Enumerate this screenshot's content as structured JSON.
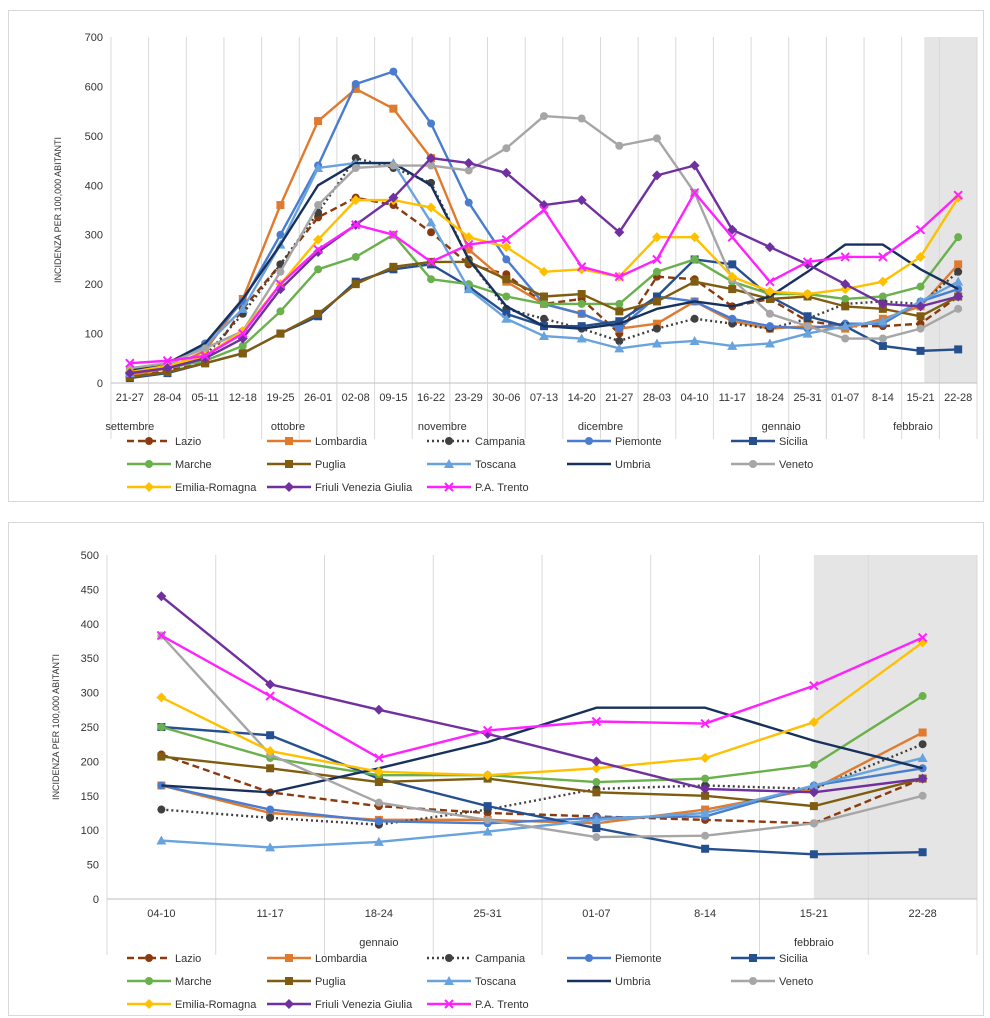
{
  "chart_data": [
    {
      "type": "line",
      "ylabel": "INCIDENZA PER 100,000 ABITANTI",
      "ylim": [
        0,
        700
      ],
      "yticks": [
        0,
        100,
        200,
        300,
        400,
        500,
        600,
        700
      ],
      "grid": "vertical",
      "legend_position": "bottom",
      "categories": [
        "21-27",
        "28-04",
        "05-11",
        "12-18",
        "19-25",
        "26-01",
        "02-08",
        "09-15",
        "16-22",
        "23-29",
        "30-06",
        "07-13",
        "14-20",
        "21-27",
        "28-03",
        "04-10",
        "11-17",
        "18-24",
        "25-31",
        "01-07",
        "8-14",
        "15-21",
        "22-28"
      ],
      "months": [
        {
          "label": "settembre",
          "index": 0
        },
        {
          "label": "ottobre",
          "index": 4.2
        },
        {
          "label": "novembre",
          "index": 8.3
        },
        {
          "label": "dicembre",
          "index": 12.5
        },
        {
          "label": "gennaio",
          "index": 17.3
        },
        {
          "label": "febbraio",
          "index": 20.8
        }
      ],
      "month_dividers": [
        2,
        6,
        10,
        14,
        19
      ],
      "shaded_from_index": 21.6,
      "series": [
        {
          "name": "Lazio",
          "color": "#8b3a0e",
          "dash": "7,4",
          "marker": "circle",
          "values": [
            15,
            25,
            40,
            150,
            240,
            335,
            375,
            360,
            305,
            240,
            220,
            160,
            170,
            100,
            215,
            210,
            155,
            170,
            125,
            115,
            115,
            120,
            175
          ]
        },
        {
          "name": "Lombardia",
          "color": "#e07a2e",
          "dash": "",
          "marker": "square",
          "values": [
            15,
            30,
            65,
            170,
            360,
            530,
            595,
            555,
            455,
            270,
            205,
            160,
            140,
            110,
            120,
            165,
            125,
            110,
            115,
            110,
            130,
            155,
            240
          ]
        },
        {
          "name": "Campania",
          "color": "#404040",
          "dash": "2,3",
          "marker": "circle",
          "values": [
            20,
            30,
            55,
            140,
            240,
            345,
            455,
            435,
            405,
            250,
            150,
            130,
            110,
            85,
            110,
            130,
            120,
            110,
            130,
            160,
            165,
            160,
            225
          ]
        },
        {
          "name": "Piemonte",
          "color": "#4a7dd0",
          "dash": "",
          "marker": "circle",
          "values": [
            25,
            35,
            80,
            165,
            300,
            440,
            605,
            630,
            525,
            365,
            250,
            160,
            140,
            110,
            175,
            165,
            130,
            115,
            110,
            120,
            120,
            165,
            190
          ]
        },
        {
          "name": "Sicilia",
          "color": "#254f8f",
          "dash": "",
          "marker": "square",
          "values": [
            10,
            20,
            40,
            60,
            100,
            135,
            205,
            230,
            240,
            195,
            140,
            115,
            115,
            125,
            175,
            250,
            240,
            175,
            135,
            115,
            75,
            65,
            68
          ]
        },
        {
          "name": "Marche",
          "color": "#6ab04c",
          "dash": "",
          "marker": "circle",
          "values": [
            20,
            30,
            45,
            75,
            145,
            230,
            255,
            300,
            210,
            200,
            175,
            160,
            160,
            160,
            225,
            250,
            205,
            180,
            180,
            170,
            175,
            195,
            295
          ]
        },
        {
          "name": "Puglia",
          "color": "#7f5c10",
          "dash": "",
          "marker": "square",
          "values": [
            12,
            22,
            40,
            60,
            100,
            140,
            200,
            235,
            245,
            245,
            210,
            175,
            180,
            145,
            165,
            205,
            190,
            170,
            175,
            155,
            150,
            135,
            175
          ]
        },
        {
          "name": "Toscana",
          "color": "#69a3de",
          "dash": "",
          "marker": "triangle",
          "values": [
            20,
            35,
            75,
            150,
            280,
            435,
            445,
            445,
            325,
            190,
            130,
            95,
            90,
            70,
            80,
            85,
            75,
            80,
            100,
            115,
            125,
            165,
            205
          ]
        },
        {
          "name": "Umbria",
          "color": "#17315c",
          "dash": "",
          "marker": "none",
          "values": [
            25,
            40,
            80,
            170,
            280,
            400,
            445,
            445,
            400,
            250,
            155,
            115,
            110,
            120,
            150,
            165,
            155,
            175,
            225,
            280,
            280,
            230,
            190
          ]
        },
        {
          "name": "Veneto",
          "color": "#a6a6a6",
          "dash": "",
          "marker": "circle",
          "values": [
            30,
            40,
            70,
            105,
            225,
            360,
            435,
            440,
            440,
            430,
            475,
            540,
            535,
            480,
            495,
            385,
            210,
            140,
            115,
            90,
            90,
            110,
            150
          ]
        },
        {
          "name": "Emilia-Romagna",
          "color": "#ffc000",
          "dash": "",
          "marker": "diamond",
          "values": [
            22,
            35,
            55,
            105,
            200,
            290,
            370,
            370,
            355,
            295,
            275,
            225,
            230,
            215,
            295,
            295,
            215,
            185,
            180,
            190,
            205,
            255,
            375
          ]
        },
        {
          "name": "Friuli Venezia Giulia",
          "color": "#7030a0",
          "dash": "",
          "marker": "diamond",
          "values": [
            20,
            30,
            50,
            90,
            190,
            265,
            320,
            375,
            455,
            445,
            425,
            360,
            370,
            305,
            420,
            440,
            310,
            275,
            240,
            200,
            160,
            155,
            175
          ]
        },
        {
          "name": "P.A. Trento",
          "color": "#ff22ff",
          "dash": "",
          "marker": "x",
          "values": [
            40,
            45,
            55,
            100,
            200,
            270,
            320,
            300,
            245,
            280,
            290,
            350,
            235,
            215,
            250,
            385,
            295,
            205,
            245,
            255,
            255,
            310,
            380
          ]
        }
      ]
    },
    {
      "type": "line",
      "ylabel": "INCIDENZA PER 100,000 ABITANTI",
      "ylim": [
        0,
        500
      ],
      "yticks": [
        0,
        50,
        100,
        150,
        200,
        250,
        300,
        350,
        400,
        450,
        500
      ],
      "grid": "vertical",
      "legend_position": "bottom",
      "categories": [
        "04-10",
        "11-17",
        "18-24",
        "25-31",
        "01-07",
        "8-14",
        "15-21",
        "22-28"
      ],
      "months": [
        {
          "label": "gennaio",
          "index": 2
        },
        {
          "label": "febbraio",
          "index": 6
        }
      ],
      "month_dividers": [],
      "shaded_from_index": 6.5,
      "series": [
        {
          "name": "Lazio",
          "color": "#8b3a0e",
          "dash": "7,4",
          "marker": "circle",
          "values": [
            210,
            155,
            135,
            125,
            120,
            115,
            110,
            175
          ]
        },
        {
          "name": "Lombardia",
          "color": "#e07a2e",
          "dash": "",
          "marker": "square",
          "values": [
            165,
            125,
            115,
            115,
            110,
            130,
            160,
            242
          ]
        },
        {
          "name": "Campania",
          "color": "#404040",
          "dash": "2,3",
          "marker": "circle",
          "values": [
            130,
            118,
            108,
            130,
            160,
            165,
            160,
            225
          ]
        },
        {
          "name": "Piemonte",
          "color": "#4a7dd0",
          "dash": "",
          "marker": "circle",
          "values": [
            165,
            130,
            113,
            110,
            118,
            120,
            165,
            190
          ]
        },
        {
          "name": "Sicilia",
          "color": "#254f8f",
          "dash": "",
          "marker": "square",
          "values": [
            250,
            238,
            175,
            135,
            103,
            73,
            65,
            68
          ]
        },
        {
          "name": "Marche",
          "color": "#6ab04c",
          "dash": "",
          "marker": "circle",
          "values": [
            250,
            205,
            180,
            180,
            170,
            175,
            195,
            295
          ]
        },
        {
          "name": "Puglia",
          "color": "#7f5c10",
          "dash": "",
          "marker": "square",
          "values": [
            207,
            190,
            170,
            175,
            155,
            150,
            135,
            175
          ]
        },
        {
          "name": "Toscana",
          "color": "#69a3de",
          "dash": "",
          "marker": "triangle",
          "values": [
            85,
            75,
            83,
            98,
            115,
            125,
            165,
            205
          ]
        },
        {
          "name": "Umbria",
          "color": "#17315c",
          "dash": "",
          "marker": "none",
          "values": [
            165,
            155,
            190,
            228,
            278,
            278,
            230,
            190
          ]
        },
        {
          "name": "Veneto",
          "color": "#a6a6a6",
          "dash": "",
          "marker": "circle",
          "values": [
            383,
            210,
            140,
            115,
            90,
            92,
            110,
            150
          ]
        },
        {
          "name": "Emilia-Romagna",
          "color": "#ffc000",
          "dash": "",
          "marker": "diamond",
          "values": [
            293,
            215,
            185,
            180,
            190,
            205,
            257,
            373
          ]
        },
        {
          "name": "Friuli Venezia Giulia",
          "color": "#7030a0",
          "dash": "",
          "marker": "diamond",
          "values": [
            440,
            312,
            275,
            240,
            200,
            160,
            155,
            175
          ]
        },
        {
          "name": "P.A. Trento",
          "color": "#ff22ff",
          "dash": "",
          "marker": "x",
          "values": [
            383,
            295,
            205,
            245,
            258,
            255,
            310,
            380
          ]
        }
      ]
    }
  ]
}
